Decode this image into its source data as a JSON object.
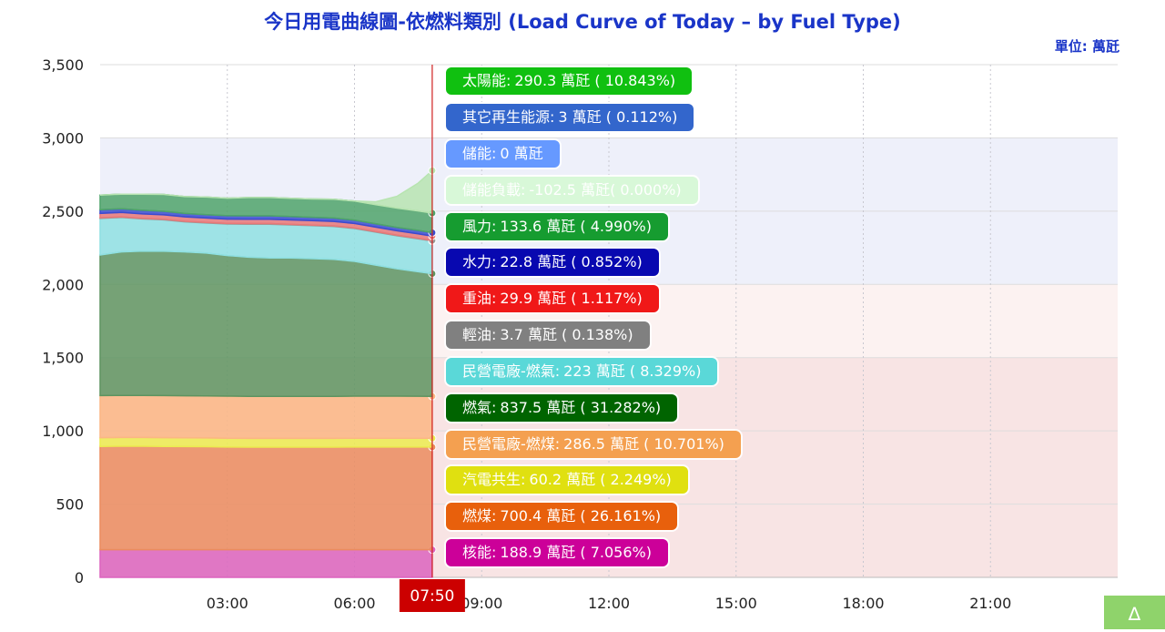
{
  "title": "今日用電曲線圖-依燃料類別 (Load Curve of Today – by Fuel Type)",
  "unit_label": "單位: 萬瓩",
  "cursor_time_label": "07:50",
  "delta_button": "∆",
  "chart_data": {
    "type": "area",
    "stacked": true,
    "x_unit": "hours",
    "xlim": [
      0,
      24
    ],
    "ylim": [
      0,
      3500
    ],
    "y_ticks": [
      0,
      500,
      1000,
      1500,
      2000,
      2500,
      3000,
      3500
    ],
    "y_tick_labels": [
      "0",
      "500",
      "1,000",
      "1,500",
      "2,000",
      "2,500",
      "3,000",
      "3,500"
    ],
    "x_ticks": [
      3,
      6,
      9,
      12,
      15,
      18,
      21
    ],
    "x_tick_labels": [
      "03:00",
      "06:00",
      "09:00",
      "12:00",
      "15:00",
      "18:00",
      "21:00"
    ],
    "background_bands": [
      {
        "from": 0,
        "to": 1500,
        "color": "#f8e4e4"
      },
      {
        "from": 1500,
        "to": 2000,
        "color": "#fcf2f1"
      },
      {
        "from": 2000,
        "to": 3000,
        "color": "#eef0fa"
      }
    ],
    "grid": true,
    "cursor_time": 7.833,
    "x": [
      0,
      0.5,
      1,
      1.5,
      2,
      2.5,
      3,
      3.5,
      4,
      4.5,
      5,
      5.5,
      6,
      6.5,
      7,
      7.5,
      7.833
    ],
    "series": [
      {
        "name": "核能",
        "color": "#dc64be",
        "values": [
          188.9,
          188.9,
          188.9,
          188.9,
          188.9,
          188.9,
          188.9,
          188.9,
          188.9,
          188.9,
          188.9,
          188.9,
          188.9,
          188.9,
          188.9,
          188.9,
          188.9
        ]
      },
      {
        "name": "燃煤",
        "color": "#eb8c5f",
        "values": [
          705,
          706,
          706,
          705,
          704,
          703,
          701,
          700,
          700,
          700,
          700,
          700,
          701,
          701,
          701,
          700.5,
          700.4
        ]
      },
      {
        "name": "汽電共生",
        "color": "#ecec50",
        "values": [
          60,
          60,
          60,
          60,
          60,
          60,
          60,
          60,
          60,
          60,
          60,
          60,
          60,
          60,
          60,
          60.2,
          60.2
        ]
      },
      {
        "name": "民營電廠-燃煤",
        "color": "#fbb684",
        "values": [
          287,
          287,
          287,
          287,
          287,
          287,
          287,
          287,
          287,
          287,
          287,
          287,
          287,
          287,
          287,
          287,
          286.5
        ]
      },
      {
        "name": "燃氣",
        "color": "#5e9460",
        "values": [
          960,
          980,
          985,
          985,
          982,
          975,
          960,
          950,
          945,
          945,
          940,
          935,
          920,
          895,
          870,
          850,
          837.5
        ]
      },
      {
        "name": "民營電廠-燃氣",
        "color": "#8fe0e2",
        "values": [
          250,
          235,
          220,
          215,
          205,
          205,
          215,
          225,
          230,
          225,
          225,
          225,
          225,
          225,
          225,
          225,
          223
        ]
      },
      {
        "name": "輕油",
        "color": "#9a9a9a",
        "values": [
          4,
          4,
          4,
          4,
          4,
          4,
          4,
          4,
          4,
          4,
          4,
          4,
          4,
          4,
          4,
          3.7,
          3.7
        ]
      },
      {
        "name": "重油",
        "color": "#e87878",
        "values": [
          30,
          30,
          30,
          30,
          30,
          30,
          30,
          30,
          30,
          30,
          30,
          30,
          30,
          30,
          30,
          30,
          29.9
        ]
      },
      {
        "name": "水力",
        "color": "#3a4bd0",
        "values": [
          25,
          25,
          25,
          24,
          23,
          23,
          23,
          23,
          23,
          23,
          23,
          23,
          23,
          23,
          23,
          23,
          22.8
        ]
      },
      {
        "name": "風力",
        "color": "#4fa36a",
        "values": [
          100,
          100,
          110,
          115,
          115,
          120,
          120,
          125,
          125,
          125,
          125,
          128,
          130,
          130,
          132,
          133,
          133.6
        ]
      },
      {
        "name": "太陽能",
        "color": "#b7e4b0",
        "values": [
          0,
          0,
          0,
          0,
          0,
          0,
          0,
          0,
          0,
          0,
          0,
          0,
          0,
          20,
          80,
          190,
          290.3
        ]
      }
    ],
    "tooltip_time": "07:50",
    "tooltip": [
      {
        "label": "太陽能",
        "value": "290.3 萬瓩 ( 10.843%)",
        "color": "#10c010",
        "text_color": "#ffffff"
      },
      {
        "label": "其它再生能源",
        "value": "3 萬瓩 ( 0.112%)",
        "color": "#3366cc",
        "text_color": "#ffffff"
      },
      {
        "label": "儲能",
        "value": "0 萬瓩",
        "color": "#6699ff",
        "text_color": "#ffffff"
      },
      {
        "label": "儲能負載",
        "value": "-102.5 萬瓩( 0.000%)",
        "color": "#d8f8d8",
        "text_color": "#ffffff"
      },
      {
        "label": "風力",
        "value": "133.6 萬瓩 ( 4.990%)",
        "color": "#169c30",
        "text_color": "#ffffff"
      },
      {
        "label": "水力",
        "value": "22.8 萬瓩 ( 0.852%)",
        "color": "#0808b0",
        "text_color": "#ffffff"
      },
      {
        "label": "重油",
        "value": "29.9 萬瓩 ( 1.117%)",
        "color": "#f01818",
        "text_color": "#ffffff"
      },
      {
        "label": "輕油",
        "value": "3.7 萬瓩 ( 0.138%)",
        "color": "#808080",
        "text_color": "#ffffff"
      },
      {
        "label": "民營電廠-燃氣",
        "value": "223 萬瓩 ( 8.329%)",
        "color": "#5ad8d8",
        "text_color": "#ffffff"
      },
      {
        "label": "燃氣",
        "value": "837.5 萬瓩 ( 31.282%)",
        "color": "#006400",
        "text_color": "#ffffff"
      },
      {
        "label": "民營電廠-燃煤",
        "value": "286.5 萬瓩 ( 10.701%)",
        "color": "#f4a050",
        "text_color": "#ffffff"
      },
      {
        "label": "汽電共生",
        "value": "60.2 萬瓩 ( 2.249%)",
        "color": "#e0e010",
        "text_color": "#ffffff"
      },
      {
        "label": "燃煤",
        "value": "700.4 萬瓩 ( 26.161%)",
        "color": "#e8600c",
        "text_color": "#ffffff"
      },
      {
        "label": "核能",
        "value": "188.9 萬瓩 ( 7.056%)",
        "color": "#cc0099",
        "text_color": "#ffffff"
      }
    ]
  }
}
